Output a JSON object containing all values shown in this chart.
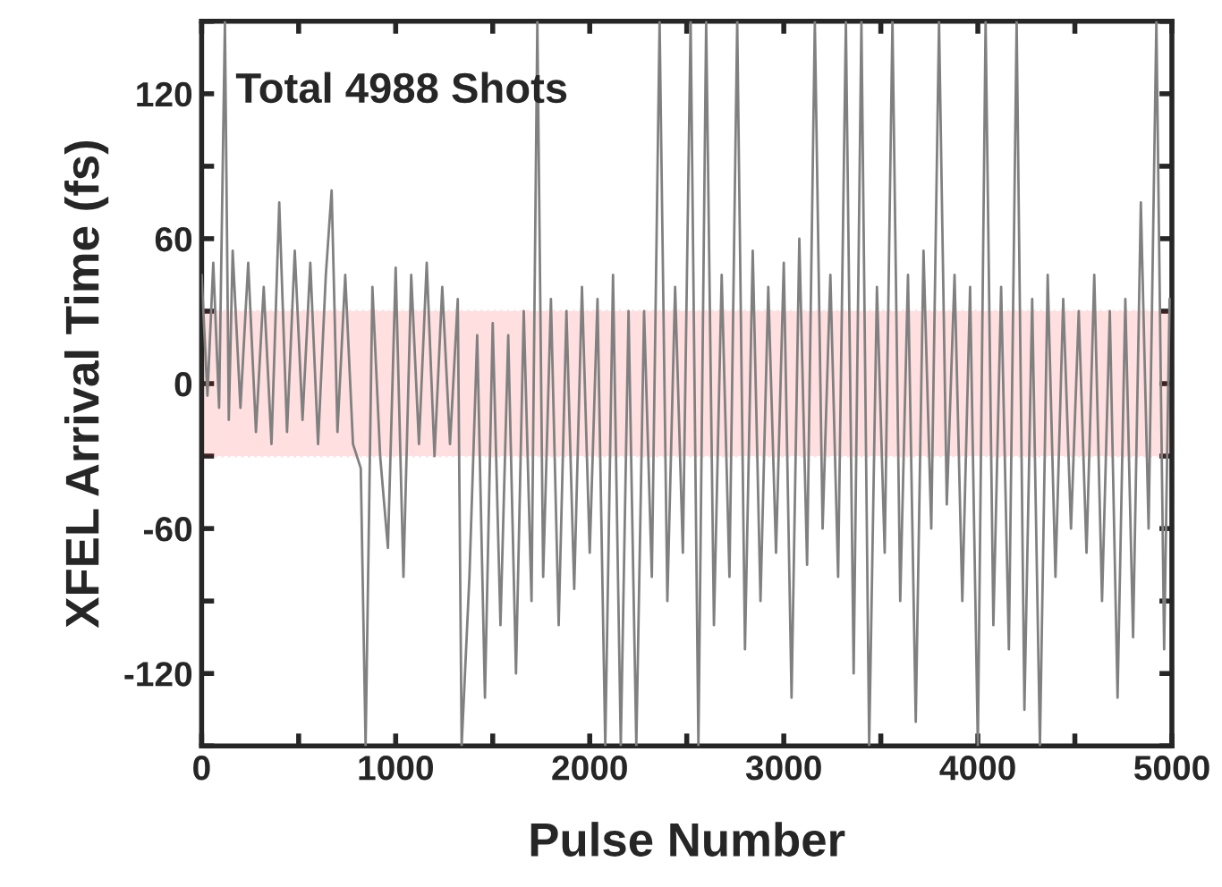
{
  "chart_data": {
    "type": "line",
    "xlabel": "Pulse Number",
    "ylabel": "XFEL Arrival Time (fs)",
    "annotations": [
      "Total 4988 Shots"
    ],
    "xlim": [
      0,
      5000
    ],
    "xticks": [
      0,
      {
        "value": 500,
        "label": null
      },
      1000,
      {
        "value": 1500,
        "label": null
      },
      2000,
      {
        "value": 2500,
        "label": null
      },
      3000,
      {
        "value": 3500,
        "label": null
      },
      4000,
      {
        "value": 4500,
        "label": null
      },
      5000
    ],
    "ylim": [
      -150,
      150
    ],
    "yticks": [
      {
        "value": -150,
        "label": null
      },
      -120,
      {
        "value": -90,
        "label": null
      },
      -60,
      {
        "value": -30,
        "label": null
      },
      0,
      {
        "value": 30,
        "label": null
      },
      60,
      {
        "value": 90,
        "label": null
      },
      120,
      {
        "value": 150,
        "label": null
      }
    ],
    "bands": [
      {
        "axis": "y",
        "from": -30,
        "to": 30,
        "color": "#ff0000"
      }
    ],
    "grid": false,
    "legend": false,
    "series": [
      {
        "color": "#808080",
        "x": [
          0,
          30,
          60,
          90,
          120,
          140,
          160,
          200,
          240,
          280,
          320,
          360,
          400,
          440,
          480,
          520,
          560,
          600,
          640,
          670,
          700,
          740,
          780,
          820,
          845,
          880,
          920,
          960,
          1000,
          1040,
          1080,
          1120,
          1160,
          1200,
          1240,
          1280,
          1320,
          1340,
          1380,
          1420,
          1460,
          1500,
          1540,
          1580,
          1620,
          1660,
          1700,
          1730,
          1760,
          1800,
          1840,
          1880,
          1920,
          1960,
          2000,
          2040,
          2080,
          2120,
          2160,
          2200,
          2240,
          2280,
          2320,
          2360,
          2400,
          2440,
          2480,
          2520,
          2560,
          2600,
          2640,
          2680,
          2720,
          2760,
          2800,
          2840,
          2880,
          2920,
          2960,
          3000,
          3040,
          3080,
          3120,
          3160,
          3200,
          3240,
          3280,
          3320,
          3360,
          3400,
          3440,
          3480,
          3520,
          3560,
          3600,
          3640,
          3680,
          3720,
          3760,
          3800,
          3840,
          3880,
          3920,
          3960,
          4000,
          4040,
          4080,
          4120,
          4160,
          4200,
          4240,
          4280,
          4320,
          4360,
          4400,
          4440,
          4480,
          4520,
          4560,
          4600,
          4640,
          4680,
          4720,
          4760,
          4800,
          4840,
          4880,
          4920,
          4960,
          4988
        ],
        "values": [
          45,
          -5,
          50,
          -10,
          150,
          -15,
          55,
          -10,
          50,
          -20,
          40,
          -25,
          75,
          -20,
          55,
          -15,
          50,
          -25,
          45,
          80,
          -20,
          45,
          -25,
          -35,
          -150,
          40,
          -30,
          -68,
          48,
          -80,
          45,
          -25,
          50,
          -30,
          40,
          -25,
          35,
          -150,
          -80,
          20,
          -130,
          25,
          -100,
          20,
          -120,
          30,
          -90,
          150,
          -80,
          35,
          -100,
          30,
          -85,
          40,
          -70,
          35,
          -150,
          45,
          -150,
          30,
          -150,
          30,
          -80,
          150,
          -90,
          40,
          -70,
          150,
          -150,
          150,
          -100,
          45,
          -80,
          150,
          -110,
          55,
          -90,
          40,
          -70,
          50,
          -130,
          60,
          -75,
          150,
          -60,
          45,
          -80,
          150,
          -120,
          150,
          -150,
          40,
          -70,
          150,
          -90,
          45,
          -140,
          55,
          -60,
          150,
          -50,
          45,
          -90,
          40,
          -150,
          150,
          -100,
          40,
          -110,
          150,
          -135,
          35,
          -150,
          45,
          -80,
          35,
          -60,
          30,
          -70,
          45,
          -90,
          30,
          -130,
          35,
          -105,
          75,
          -60,
          150,
          -110,
          35
        ]
      }
    ]
  }
}
